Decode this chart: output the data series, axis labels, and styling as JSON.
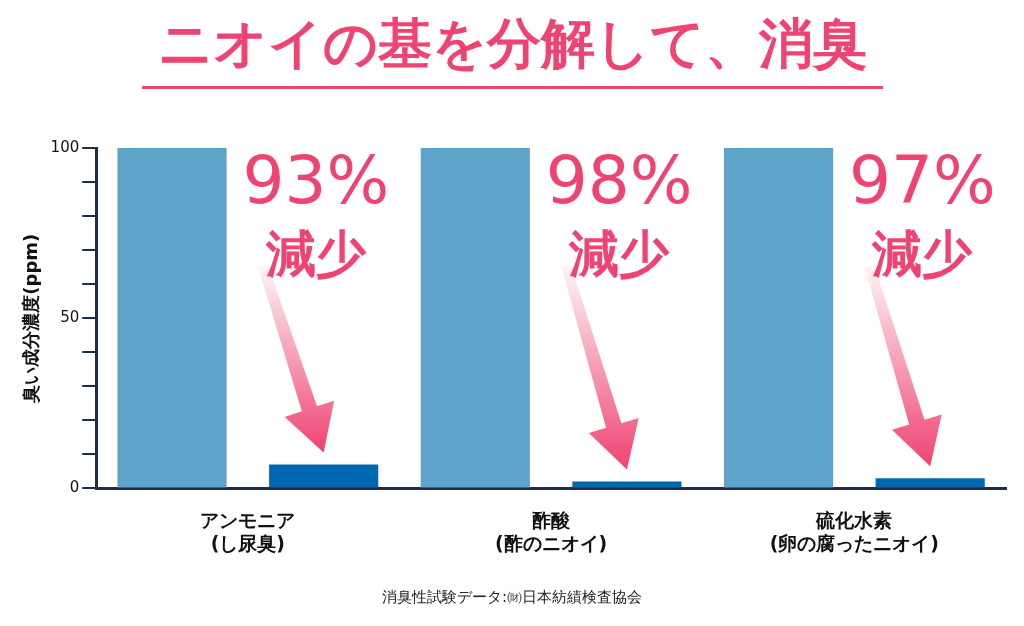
{
  "chart_data": {
    "type": "bar",
    "title": "ニオイの基を分解して、消臭",
    "ylabel": "臭い成分濃度(ppm)",
    "categories": [
      "アンモニア\n(し尿臭)",
      "酢酸\n(酢のニオイ)",
      "硫化水素\n(卵の腐ったニオイ)"
    ],
    "series": [
      {
        "color": "#5ea3c9",
        "values": [
          100,
          100,
          100
        ]
      },
      {
        "color": "#0068b3",
        "values": [
          7,
          2,
          3
        ]
      }
    ],
    "ylim": [
      0,
      100
    ],
    "yticks": [
      0,
      {
        "value": 10,
        "label": null
      },
      {
        "value": 20,
        "label": null
      },
      {
        "value": 30,
        "label": null
      },
      {
        "value": 40,
        "label": null
      },
      50,
      {
        "value": 60,
        "label": null
      },
      {
        "value": 70,
        "label": null
      },
      {
        "value": 80,
        "label": null
      },
      {
        "value": 90,
        "label": null
      },
      100
    ],
    "grid": false,
    "annotations": [
      "93%\n減少",
      "98%\n減少",
      "97%\n減少",
      "消臭性試験データ:㈶日本紡績検査協会"
    ]
  }
}
